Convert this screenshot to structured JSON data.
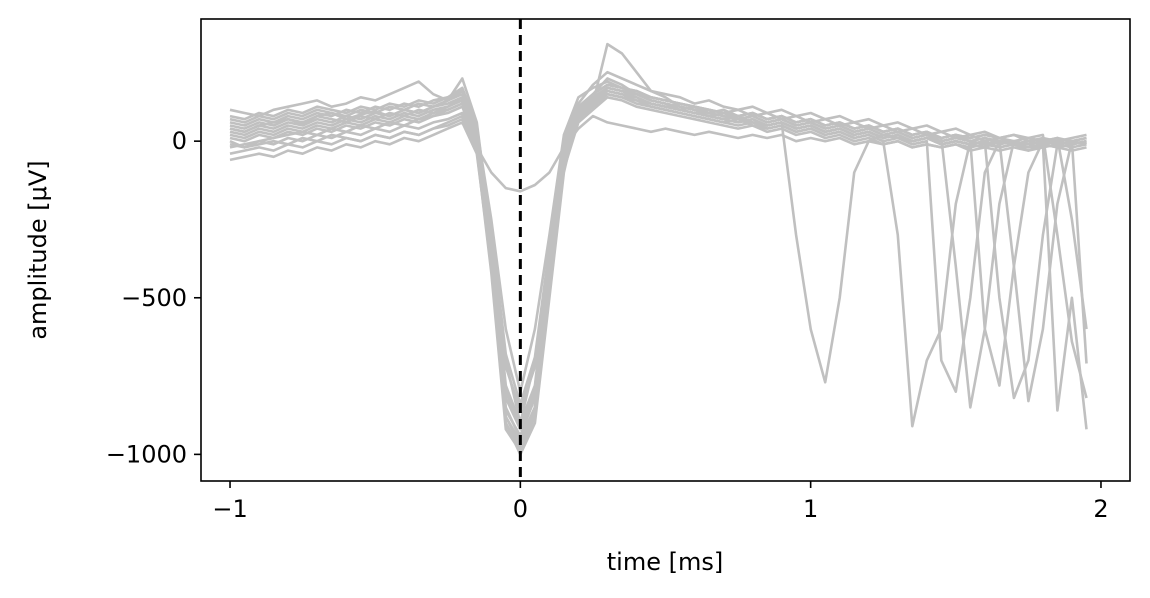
{
  "chart_data": {
    "type": "line",
    "title": "",
    "xlabel": "time [ms]",
    "ylabel": "amplitude [μV]",
    "xlim": [
      -1.1,
      2.1
    ],
    "ylim": [
      -1085,
      390
    ],
    "xticks": [
      -1,
      0,
      1,
      2
    ],
    "xtick_labels": [
      "−1",
      "0",
      "1",
      "2"
    ],
    "yticks": [
      0,
      -500,
      -1000
    ],
    "ytick_labels": [
      "0",
      "−500",
      "−1000"
    ],
    "grid": false,
    "legend": "none",
    "trace_color": "#c0c0c0",
    "marker_line": {
      "x": 0,
      "style": "dashed",
      "color": "#000000"
    },
    "sample_times": [
      -1.0,
      -0.95,
      -0.9,
      -0.85,
      -0.8,
      -0.75,
      -0.7,
      -0.65,
      -0.6,
      -0.55,
      -0.5,
      -0.45,
      -0.4,
      -0.35,
      -0.3,
      -0.25,
      -0.2,
      -0.15,
      -0.1,
      -0.05,
      0.0,
      0.05,
      0.1,
      0.15,
      0.2,
      0.25,
      0.3,
      0.35,
      0.4,
      0.45,
      0.5,
      0.55,
      0.6,
      0.65,
      0.7,
      0.75,
      0.8,
      0.85,
      0.9,
      0.95,
      1.0,
      1.05,
      1.1,
      1.15,
      1.2,
      1.25,
      1.3,
      1.35,
      1.4,
      1.45,
      1.5,
      1.55,
      1.6,
      1.65,
      1.7,
      1.75,
      1.8,
      1.85,
      1.9,
      1.95
    ],
    "series": [
      {
        "values": [
          40,
          30,
          50,
          60,
          70,
          55,
          80,
          90,
          70,
          85,
          95,
          80,
          100,
          90,
          110,
          130,
          150,
          20,
          -400,
          -900,
          -1000,
          -900,
          -500,
          -100,
          100,
          150,
          200,
          180,
          150,
          130,
          120,
          100,
          110,
          90,
          100,
          80,
          90,
          70,
          80,
          60,
          70,
          50,
          60,
          40,
          50,
          30,
          40,
          20,
          30,
          10,
          20,
          0,
          10,
          -10,
          0,
          -20,
          10,
          -10,
          0,
          10
        ]
      },
      {
        "values": [
          -20,
          -10,
          0,
          10,
          20,
          30,
          20,
          40,
          30,
          50,
          40,
          60,
          50,
          70,
          80,
          100,
          120,
          0,
          -350,
          -850,
          -950,
          -850,
          -450,
          -50,
          80,
          120,
          310,
          280,
          220,
          160,
          140,
          110,
          100,
          80,
          90,
          70,
          60,
          50,
          60,
          40,
          50,
          30,
          40,
          20,
          30,
          10,
          20,
          0,
          10,
          -10,
          0,
          -10,
          -20,
          0,
          -10,
          -30,
          -10,
          -20,
          -30,
          -20
        ]
      },
      {
        "values": [
          100,
          90,
          80,
          100,
          110,
          120,
          130,
          110,
          120,
          140,
          130,
          150,
          170,
          190,
          150,
          130,
          200,
          60,
          -300,
          -700,
          -900,
          -700,
          -350,
          0,
          120,
          180,
          220,
          200,
          180,
          160,
          150,
          140,
          120,
          130,
          110,
          100,
          110,
          90,
          100,
          80,
          90,
          70,
          80,
          60,
          70,
          50,
          60,
          40,
          50,
          30,
          40,
          20,
          30,
          10,
          20,
          0,
          10,
          0,
          10,
          20
        ]
      },
      {
        "values": [
          0,
          -20,
          -10,
          0,
          -10,
          10,
          0,
          20,
          10,
          0,
          20,
          10,
          30,
          20,
          40,
          60,
          80,
          -20,
          -100,
          -150,
          -160,
          -140,
          -100,
          -20,
          40,
          80,
          60,
          50,
          40,
          30,
          40,
          30,
          20,
          30,
          20,
          10,
          20,
          10,
          20,
          0,
          10,
          0,
          10,
          -10,
          0,
          -10,
          0,
          -20,
          -10,
          -20,
          -10,
          -30,
          -20,
          -30,
          -20,
          -30,
          -20,
          -10,
          -20,
          -10
        ]
      },
      {
        "values": [
          60,
          50,
          70,
          60,
          80,
          70,
          90,
          80,
          100,
          90,
          110,
          100,
          120,
          110,
          130,
          140,
          160,
          40,
          -250,
          -600,
          -800,
          -600,
          -300,
          20,
          140,
          170,
          190,
          170,
          150,
          140,
          130,
          120,
          110,
          100,
          90,
          100,
          80,
          90,
          70,
          80,
          60,
          70,
          50,
          60,
          40,
          50,
          30,
          40,
          20,
          30,
          10,
          20,
          0,
          10,
          -10,
          0,
          -10,
          0,
          -10,
          0
        ]
      },
      {
        "values": [
          30,
          20,
          40,
          30,
          50,
          40,
          60,
          50,
          70,
          60,
          80,
          70,
          90,
          80,
          100,
          110,
          130,
          10,
          -380,
          -880,
          -960,
          -850,
          -420,
          -80,
          90,
          130,
          170,
          160,
          140,
          120,
          110,
          100,
          90,
          80,
          70,
          80,
          60,
          50,
          60,
          -300,
          -600,
          -770,
          -500,
          -100,
          0,
          20,
          10,
          0,
          10,
          -10,
          0,
          -10,
          0,
          -20,
          -10,
          0,
          -10,
          0,
          -10,
          0
        ]
      },
      {
        "values": [
          -40,
          -30,
          -20,
          -30,
          -10,
          -20,
          0,
          -10,
          10,
          0,
          20,
          10,
          30,
          20,
          40,
          50,
          70,
          -30,
          -420,
          -920,
          -990,
          -880,
          -460,
          -60,
          70,
          110,
          150,
          140,
          120,
          110,
          100,
          90,
          80,
          70,
          60,
          70,
          50,
          40,
          50,
          30,
          40,
          20,
          30,
          10,
          20,
          0,
          -300,
          -910,
          -700,
          -600,
          -200,
          0,
          -10,
          -20,
          -10,
          0,
          -10,
          -20,
          -10,
          0
        ]
      },
      {
        "values": [
          80,
          70,
          90,
          80,
          100,
          90,
          110,
          100,
          90,
          110,
          100,
          120,
          110,
          130,
          120,
          140,
          170,
          50,
          -320,
          -780,
          -900,
          -780,
          -380,
          -20,
          110,
          150,
          180,
          170,
          160,
          140,
          130,
          120,
          110,
          100,
          90,
          80,
          90,
          70,
          80,
          60,
          70,
          50,
          60,
          40,
          50,
          30,
          40,
          20,
          30,
          10,
          -400,
          -850,
          -600,
          -200,
          0,
          -10,
          0,
          -10,
          0,
          -10
        ]
      },
      {
        "values": [
          20,
          10,
          30,
          20,
          40,
          30,
          50,
          40,
          60,
          50,
          70,
          60,
          80,
          70,
          90,
          100,
          120,
          0,
          -360,
          -860,
          -940,
          -820,
          -410,
          -70,
          80,
          120,
          160,
          150,
          130,
          120,
          110,
          100,
          90,
          80,
          70,
          60,
          70,
          50,
          60,
          40,
          50,
          30,
          40,
          20,
          30,
          10,
          20,
          0,
          10,
          -10,
          0,
          -10,
          0,
          -500,
          -820,
          -700,
          -300,
          -10,
          0,
          -10
        ]
      },
      {
        "values": [
          -60,
          -50,
          -40,
          -50,
          -30,
          -40,
          -20,
          -30,
          -10,
          -20,
          0,
          -10,
          10,
          0,
          20,
          40,
          60,
          -40,
          -400,
          -900,
          -980,
          -870,
          -450,
          -90,
          60,
          100,
          140,
          130,
          110,
          100,
          90,
          80,
          70,
          60,
          50,
          40,
          50,
          30,
          40,
          20,
          30,
          10,
          20,
          0,
          10,
          -10,
          0,
          -20,
          -10,
          -20,
          -10,
          -20,
          -10,
          0,
          -10,
          -20,
          -10,
          -860,
          -500,
          -920
        ]
      },
      {
        "values": [
          50,
          40,
          60,
          50,
          70,
          60,
          80,
          70,
          60,
          80,
          70,
          90,
          80,
          100,
          90,
          110,
          140,
          30,
          -300,
          -720,
          -860,
          -720,
          -360,
          -10,
          100,
          140,
          170,
          160,
          150,
          130,
          120,
          110,
          100,
          90,
          80,
          70,
          80,
          60,
          70,
          50,
          60,
          40,
          50,
          30,
          40,
          20,
          30,
          10,
          20,
          0,
          10,
          0,
          10,
          0,
          -400,
          -830,
          -600,
          -200,
          0,
          -710
        ]
      },
      {
        "values": [
          10,
          0,
          20,
          10,
          30,
          20,
          40,
          30,
          50,
          40,
          60,
          50,
          70,
          60,
          80,
          90,
          110,
          -10,
          -340,
          -820,
          -920,
          -800,
          -400,
          -60,
          80,
          120,
          160,
          150,
          140,
          120,
          110,
          100,
          90,
          80,
          70,
          60,
          70,
          50,
          60,
          40,
          50,
          30,
          40,
          20,
          30,
          10,
          20,
          0,
          10,
          0,
          10,
          0,
          -600,
          -780,
          -400,
          -100,
          0,
          10,
          0,
          10
        ]
      },
      {
        "values": [
          70,
          60,
          80,
          70,
          90,
          80,
          100,
          90,
          80,
          100,
          90,
          110,
          100,
          120,
          110,
          130,
          160,
          40,
          -280,
          -680,
          -840,
          -690,
          -340,
          0,
          110,
          150,
          180,
          170,
          160,
          140,
          130,
          120,
          110,
          100,
          90,
          80,
          90,
          70,
          80,
          60,
          70,
          50,
          60,
          40,
          50,
          30,
          40,
          20,
          30,
          10,
          20,
          10,
          20,
          10,
          20,
          10,
          20,
          -300,
          -640,
          -820
        ]
      },
      {
        "values": [
          -10,
          -20,
          0,
          -10,
          10,
          0,
          20,
          10,
          30,
          20,
          40,
          30,
          50,
          40,
          60,
          70,
          90,
          -20,
          -390,
          -880,
          -970,
          -860,
          -430,
          -70,
          70,
          110,
          150,
          140,
          130,
          110,
          100,
          90,
          80,
          70,
          60,
          50,
          60,
          40,
          50,
          30,
          40,
          20,
          30,
          10,
          20,
          0,
          10,
          -10,
          0,
          -700,
          -800,
          -500,
          -100,
          0,
          -10,
          0,
          -10,
          0,
          -10,
          0
        ]
      },
      {
        "values": [
          40,
          30,
          50,
          40,
          60,
          50,
          70,
          60,
          80,
          70,
          90,
          80,
          100,
          90,
          110,
          120,
          140,
          20,
          -330,
          -800,
          -910,
          -790,
          -390,
          -40,
          90,
          130,
          170,
          160,
          150,
          130,
          120,
          110,
          100,
          90,
          80,
          70,
          80,
          60,
          70,
          50,
          60,
          40,
          50,
          30,
          40,
          20,
          30,
          10,
          20,
          10,
          20,
          10,
          20,
          10,
          0,
          10,
          0,
          10,
          -250,
          -600
        ]
      }
    ]
  }
}
